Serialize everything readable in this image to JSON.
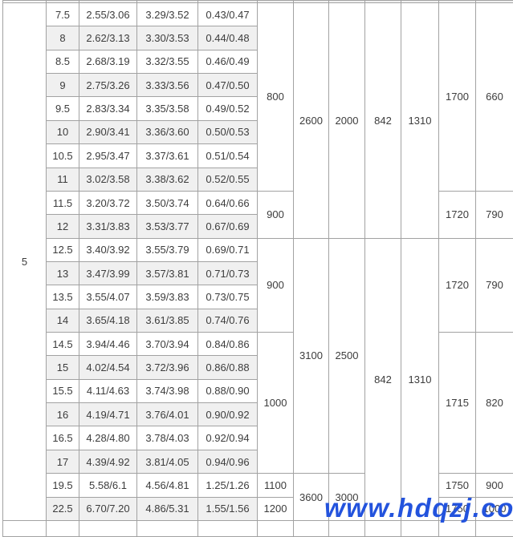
{
  "table": {
    "section_label": "5",
    "data_rows": [
      [
        "7.5",
        "2.55/3.06",
        "3.29/3.52",
        "0.43/0.47"
      ],
      [
        "8",
        "2.62/3.13",
        "3.30/3.53",
        "0.44/0.48"
      ],
      [
        "8.5",
        "2.68/3.19",
        "3.32/3.55",
        "0.46/0.49"
      ],
      [
        "9",
        "2.75/3.26",
        "3.33/3.56",
        "0.47/0.50"
      ],
      [
        "9.5",
        "2.83/3.34",
        "3.35/3.58",
        "0.49/0.52"
      ],
      [
        "10",
        "2.90/3.41",
        "3.36/3.60",
        "0.50/0.53"
      ],
      [
        "10.5",
        "2.95/3.47",
        "3.37/3.61",
        "0.51/0.54"
      ],
      [
        "11",
        "3.02/3.58",
        "3.38/3.62",
        "0.52/0.55"
      ],
      [
        "11.5",
        "3.20/3.72",
        "3.50/3.74",
        "0.64/0.66"
      ],
      [
        "12",
        "3.31/3.83",
        "3.53/3.77",
        "0.67/0.69"
      ],
      [
        "12.5",
        "3.40/3.92",
        "3.55/3.79",
        "0.69/0.71"
      ],
      [
        "13",
        "3.47/3.99",
        "3.57/3.81",
        "0.71/0.73"
      ],
      [
        "13.5",
        "3.55/4.07",
        "3.59/3.83",
        "0.73/0.75"
      ],
      [
        "14",
        "3.65/4.18",
        "3.61/3.85",
        "0.74/0.76"
      ],
      [
        "14.5",
        "3.94/4.46",
        "3.70/3.94",
        "0.84/0.86"
      ],
      [
        "15",
        "4.02/4.54",
        "3.72/3.96",
        "0.86/0.88"
      ],
      [
        "15.5",
        "4.11/4.63",
        "3.74/3.98",
        "0.88/0.90"
      ],
      [
        "16",
        "4.19/4.71",
        "3.76/4.01",
        "0.90/0.92"
      ],
      [
        "16.5",
        "4.28/4.80",
        "3.78/4.03",
        "0.92/0.94"
      ],
      [
        "17",
        "4.39/4.92",
        "3.81/4.05",
        "0.94/0.96"
      ],
      [
        "19.5",
        "5.58/6.1",
        "4.56/4.81",
        "1.25/1.26"
      ],
      [
        "22.5",
        "6.70/7.20",
        "4.86/5.31",
        "1.55/1.56"
      ]
    ],
    "merged_columns": [
      {
        "name": "col-f",
        "cells": [
          [
            "800",
            8
          ],
          [
            "900",
            2
          ],
          [
            "900",
            4
          ],
          [
            "1000",
            6
          ],
          [
            "1100",
            1
          ],
          [
            "1200",
            1
          ]
        ]
      },
      {
        "name": "col-g",
        "cells": [
          [
            "2600",
            10
          ],
          [
            "3100",
            10
          ],
          [
            "3600",
            2
          ]
        ]
      },
      {
        "name": "col-h",
        "cells": [
          [
            "2000",
            10
          ],
          [
            "2500",
            10
          ],
          [
            "3000",
            2
          ]
        ]
      },
      {
        "name": "col-i",
        "cells": [
          [
            "842",
            10
          ],
          [
            "842",
            12
          ]
        ]
      },
      {
        "name": "col-j",
        "cells": [
          [
            "1310",
            10
          ],
          [
            "1310",
            12
          ]
        ]
      },
      {
        "name": "col-k",
        "cells": [
          [
            "1700",
            8
          ],
          [
            "1720",
            2
          ],
          [
            "1720",
            4
          ],
          [
            "1715",
            6
          ],
          [
            "1750",
            1
          ],
          [
            "1750",
            1
          ]
        ]
      },
      {
        "name": "col-l",
        "cells": [
          [
            "660",
            8
          ],
          [
            "790",
            2
          ],
          [
            "790",
            4
          ],
          [
            "820",
            6
          ],
          [
            "900",
            1
          ],
          [
            "1000",
            1
          ]
        ]
      }
    ]
  },
  "watermark": {
    "text": "www.hdqzj.com"
  },
  "colors": {
    "watermark_blue": "#2353dd",
    "row_shade": "#f0f0f0",
    "grid_border": "#a2a2a2",
    "text": "#3c3c3c"
  }
}
